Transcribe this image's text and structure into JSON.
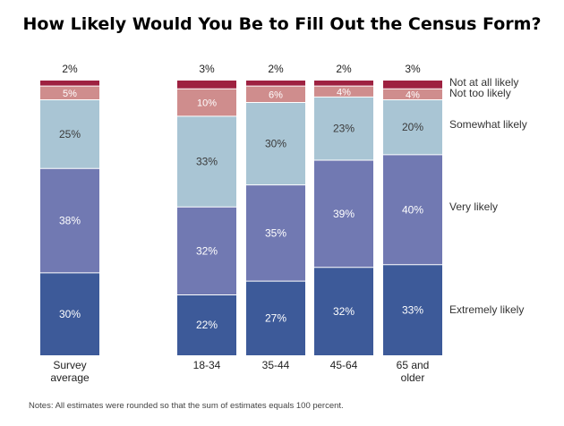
{
  "chart_data": {
    "type": "stacked-bar",
    "title": "How Likely Would You Be to Fill Out the Census Form?",
    "categories": [
      "Survey average",
      "18-34",
      "35-44",
      "45-64",
      "65 and older"
    ],
    "category_lines": [
      [
        "Survey",
        "average"
      ],
      [
        "18-34"
      ],
      [
        "35-44"
      ],
      [
        "45-64"
      ],
      [
        "65 and",
        "older"
      ]
    ],
    "series": [
      {
        "name": "Extremely likely",
        "color": "#3d5a99",
        "values": [
          30,
          22,
          27,
          32,
          33
        ]
      },
      {
        "name": "Very likely",
        "color": "#7179b2",
        "values": [
          38,
          32,
          35,
          39,
          40
        ]
      },
      {
        "name": "Somewhat likely",
        "color": "#a9c5d4",
        "values": [
          25,
          33,
          30,
          23,
          20
        ]
      },
      {
        "name": "Not too likely",
        "color": "#cf8d8d",
        "values": [
          5,
          10,
          6,
          4,
          4
        ]
      },
      {
        "name": "Not at all likely",
        "color": "#9e2140",
        "values": [
          2,
          3,
          2,
          2,
          3
        ]
      }
    ],
    "top_labels": [
      "2%",
      "3%",
      "2%",
      "2%",
      "3%"
    ],
    "value_suffix": "%",
    "ylim": [
      0,
      100
    ]
  },
  "note": "Notes: All estimates were rounded so that the sum of estimates equals 100 percent."
}
